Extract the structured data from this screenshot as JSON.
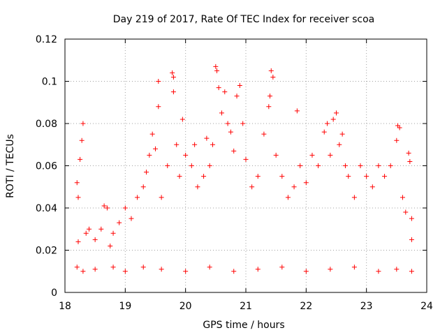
{
  "chart_data": {
    "type": "scatter",
    "title": "Day 219 of 2017, Rate Of TEC Index for receiver scoa",
    "xlabel": "GPS time / hours",
    "ylabel": "ROTI / TECUs",
    "xlim": [
      18,
      24
    ],
    "ylim": [
      0,
      0.12
    ],
    "x_ticks": [
      18,
      19,
      20,
      21,
      22,
      23,
      24
    ],
    "y_ticks": [
      0,
      0.02,
      0.04,
      0.06,
      0.08,
      0.1,
      0.12
    ],
    "x_tick_labels": [
      "18",
      "19",
      "20",
      "21",
      "22",
      "23",
      "24"
    ],
    "y_tick_labels": [
      "0",
      "0.02",
      "0.04",
      "0.06",
      "0.08",
      "0.1",
      "0.12"
    ],
    "grid": true,
    "marker": "+",
    "color": "#ff0000",
    "series": [
      {
        "points": [
          [
            18.2,
            0.052
          ],
          [
            18.22,
            0.045
          ],
          [
            18.25,
            0.063
          ],
          [
            18.28,
            0.072
          ],
          [
            18.3,
            0.08
          ],
          [
            18.22,
            0.024
          ],
          [
            18.35,
            0.028
          ],
          [
            18.4,
            0.03
          ],
          [
            18.5,
            0.025
          ],
          [
            18.6,
            0.03
          ],
          [
            18.65,
            0.041
          ],
          [
            18.7,
            0.04
          ],
          [
            18.75,
            0.022
          ],
          [
            18.8,
            0.028
          ],
          [
            18.9,
            0.033
          ],
          [
            19.0,
            0.04
          ],
          [
            19.1,
            0.035
          ],
          [
            19.2,
            0.045
          ],
          [
            19.3,
            0.05
          ],
          [
            19.35,
            0.057
          ],
          [
            19.4,
            0.065
          ],
          [
            19.45,
            0.075
          ],
          [
            19.5,
            0.068
          ],
          [
            19.55,
            0.1
          ],
          [
            19.55,
            0.088
          ],
          [
            19.6,
            0.045
          ],
          [
            19.7,
            0.06
          ],
          [
            19.78,
            0.104
          ],
          [
            19.8,
            0.102
          ],
          [
            19.8,
            0.095
          ],
          [
            19.85,
            0.07
          ],
          [
            19.9,
            0.055
          ],
          [
            19.95,
            0.082
          ],
          [
            20.0,
            0.065
          ],
          [
            20.1,
            0.06
          ],
          [
            20.15,
            0.07
          ],
          [
            20.2,
            0.05
          ],
          [
            20.3,
            0.055
          ],
          [
            20.35,
            0.073
          ],
          [
            20.4,
            0.06
          ],
          [
            20.45,
            0.07
          ],
          [
            20.5,
            0.107
          ],
          [
            20.52,
            0.105
          ],
          [
            20.55,
            0.097
          ],
          [
            20.6,
            0.085
          ],
          [
            20.65,
            0.095
          ],
          [
            20.7,
            0.08
          ],
          [
            20.75,
            0.076
          ],
          [
            20.8,
            0.067
          ],
          [
            20.85,
            0.093
          ],
          [
            20.9,
            0.098
          ],
          [
            20.95,
            0.08
          ],
          [
            21.0,
            0.063
          ],
          [
            21.1,
            0.05
          ],
          [
            21.2,
            0.055
          ],
          [
            21.3,
            0.075
          ],
          [
            21.38,
            0.088
          ],
          [
            21.4,
            0.093
          ],
          [
            21.42,
            0.105
          ],
          [
            21.45,
            0.102
          ],
          [
            21.5,
            0.065
          ],
          [
            21.6,
            0.055
          ],
          [
            21.7,
            0.045
          ],
          [
            21.8,
            0.05
          ],
          [
            21.85,
            0.086
          ],
          [
            21.9,
            0.06
          ],
          [
            22.0,
            0.052
          ],
          [
            22.1,
            0.065
          ],
          [
            22.2,
            0.06
          ],
          [
            22.3,
            0.076
          ],
          [
            22.35,
            0.08
          ],
          [
            22.4,
            0.065
          ],
          [
            22.45,
            0.082
          ],
          [
            22.5,
            0.085
          ],
          [
            22.55,
            0.07
          ],
          [
            22.6,
            0.075
          ],
          [
            22.65,
            0.06
          ],
          [
            22.7,
            0.055
          ],
          [
            22.8,
            0.045
          ],
          [
            22.9,
            0.06
          ],
          [
            23.0,
            0.055
          ],
          [
            23.1,
            0.05
          ],
          [
            23.2,
            0.06
          ],
          [
            23.3,
            0.055
          ],
          [
            23.4,
            0.06
          ],
          [
            23.5,
            0.072
          ],
          [
            23.52,
            0.079
          ],
          [
            23.55,
            0.078
          ],
          [
            23.6,
            0.045
          ],
          [
            23.65,
            0.038
          ],
          [
            23.7,
            0.066
          ],
          [
            23.72,
            0.062
          ],
          [
            23.75,
            0.025
          ],
          [
            23.75,
            0.035
          ],
          [
            18.2,
            0.012
          ],
          [
            18.3,
            0.01
          ],
          [
            18.5,
            0.011
          ],
          [
            18.8,
            0.012
          ],
          [
            19.0,
            0.01
          ],
          [
            19.3,
            0.012
          ],
          [
            19.6,
            0.011
          ],
          [
            20.0,
            0.01
          ],
          [
            20.4,
            0.012
          ],
          [
            20.8,
            0.01
          ],
          [
            21.2,
            0.011
          ],
          [
            21.6,
            0.012
          ],
          [
            22.0,
            0.01
          ],
          [
            22.4,
            0.011
          ],
          [
            22.8,
            0.012
          ],
          [
            23.2,
            0.01
          ],
          [
            23.5,
            0.011
          ],
          [
            23.75,
            0.01
          ]
        ]
      }
    ]
  }
}
